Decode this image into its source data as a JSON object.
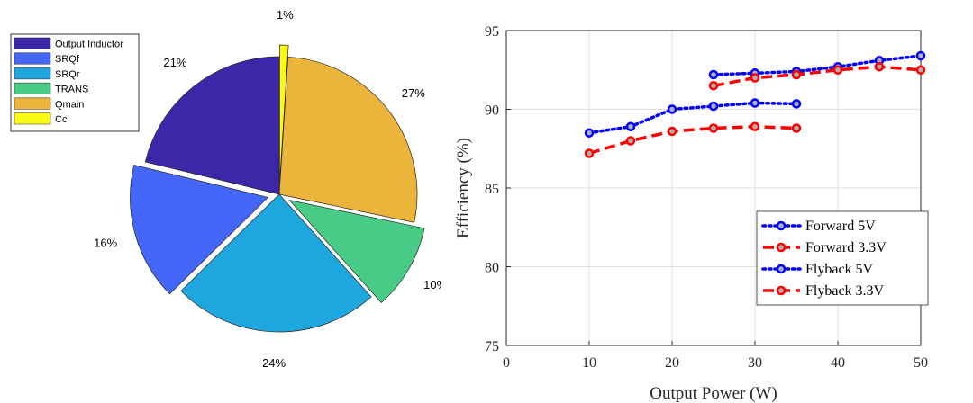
{
  "chart_data": [
    {
      "type": "pie",
      "legend_position": "top-left",
      "slices": [
        {
          "name": "Output Inductor",
          "value": 21,
          "label": "21%",
          "color": "#3e26a8",
          "exploded": false
        },
        {
          "name": "SRQf",
          "value": 16,
          "label": "16%",
          "color": "#4467fa",
          "exploded": true
        },
        {
          "name": "SRQr",
          "value": 24,
          "label": "24%",
          "color": "#1ea7df",
          "exploded": false
        },
        {
          "name": "TRANS",
          "value": 10,
          "label": "10%",
          "color": "#48cb86",
          "exploded": true
        },
        {
          "name": "Qmain",
          "value": 27,
          "label": "27%",
          "color": "#ebb43a",
          "exploded": false
        },
        {
          "name": "Cc",
          "value": 1,
          "label": "1%",
          "color": "#f9fb15",
          "exploded": true
        }
      ]
    },
    {
      "type": "line",
      "xlabel": "Output Power (W)",
      "ylabel": "Efficiency (%)",
      "xlim": [
        0,
        50
      ],
      "ylim": [
        75,
        95
      ],
      "xticks": [
        0,
        10,
        20,
        30,
        40,
        50
      ],
      "yticks": [
        75,
        80,
        85,
        90,
        95
      ],
      "grid": true,
      "legend_position": "bottom-right",
      "series": [
        {
          "name": "Forward 5V",
          "color": "#0000ff",
          "style": "dotted",
          "x": [
            25,
            30,
            35,
            40,
            45,
            50
          ],
          "values": [
            92.2,
            92.3,
            92.4,
            92.7,
            93.1,
            93.4
          ]
        },
        {
          "name": "Forward 3.3V",
          "color": "#ff0000",
          "style": "dashed",
          "x": [
            25,
            30,
            35,
            40,
            45,
            50
          ],
          "values": [
            91.5,
            92.0,
            92.2,
            92.5,
            92.7,
            92.5
          ]
        },
        {
          "name": "Flyback 5V",
          "color": "#0000ff",
          "style": "dotted",
          "x": [
            10,
            15,
            20,
            25,
            30,
            35
          ],
          "values": [
            88.5,
            88.9,
            90.0,
            90.2,
            90.4,
            90.35
          ]
        },
        {
          "name": "Flyback 3.3V",
          "color": "#ff0000",
          "style": "dashed",
          "x": [
            10,
            15,
            20,
            25,
            30,
            35
          ],
          "values": [
            87.2,
            88.0,
            88.6,
            88.8,
            88.9,
            88.8
          ]
        }
      ]
    }
  ]
}
